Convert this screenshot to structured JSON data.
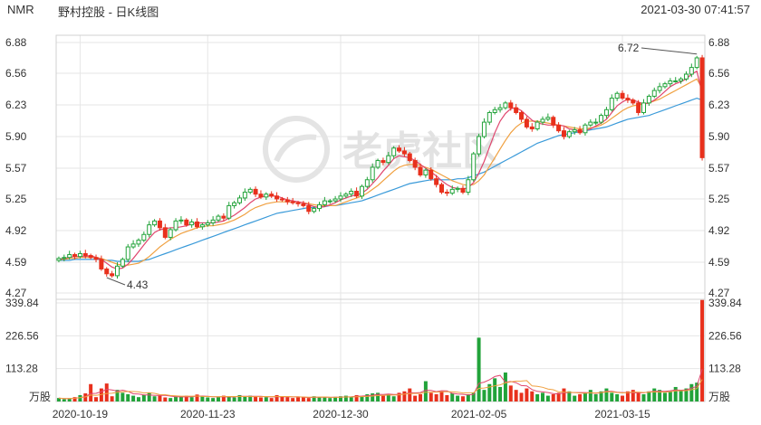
{
  "header": {
    "ticker": "NMR",
    "title": "野村控股 - 日K线图",
    "timestamp": "2021-03-30 07:41:57"
  },
  "watermark": "老虎社区",
  "colors": {
    "up": "#22a33a",
    "down": "#e8301c",
    "ma_fast": "#e0466e",
    "ma_mid": "#f0a040",
    "ma_slow": "#3a9ad9",
    "grid": "#e6e6e6",
    "axis_text": "#333333"
  },
  "chart_data": {
    "type": "candlestick",
    "price_axis": {
      "ylim": [
        4.27,
        6.88
      ],
      "ticks": [
        "6.88",
        "6.56",
        "6.23",
        "5.90",
        "5.57",
        "5.25",
        "4.92",
        "4.59",
        "4.27"
      ]
    },
    "volume_axis": {
      "ylim": [
        0,
        339.84
      ],
      "ticks": [
        "339.84",
        "226.56",
        "113.28"
      ],
      "unit": "万股"
    },
    "x_ticks": [
      {
        "label": "2020-10-19",
        "index": 4
      },
      {
        "label": "2020-11-23",
        "index": 28
      },
      {
        "label": "2020-12-30",
        "index": 53
      },
      {
        "label": "2021-02-05",
        "index": 79
      },
      {
        "label": "2021-03-15",
        "index": 106
      }
    ],
    "annotations": {
      "high": {
        "label": "6.72",
        "index": 120,
        "value": 6.72
      },
      "low": {
        "label": "4.43",
        "index": 9,
        "value": 4.43
      }
    },
    "close": [
      4.63,
      4.64,
      4.67,
      4.65,
      4.68,
      4.66,
      4.64,
      4.62,
      4.52,
      4.47,
      4.45,
      4.55,
      4.62,
      4.75,
      4.78,
      4.82,
      4.88,
      4.98,
      5.02,
      4.95,
      4.85,
      4.93,
      5.02,
      5.03,
      4.98,
      5.01,
      4.96,
      4.98,
      5.0,
      5.03,
      5.07,
      5.05,
      5.18,
      5.21,
      5.26,
      5.32,
      5.35,
      5.3,
      5.27,
      5.3,
      5.28,
      5.25,
      5.24,
      5.22,
      5.21,
      5.2,
      5.18,
      5.12,
      5.15,
      5.19,
      5.23,
      5.23,
      5.25,
      5.28,
      5.3,
      5.33,
      5.28,
      5.38,
      5.45,
      5.58,
      5.65,
      5.63,
      5.7,
      5.78,
      5.75,
      5.72,
      5.65,
      5.58,
      5.5,
      5.55,
      5.46,
      5.4,
      5.32,
      5.31,
      5.35,
      5.36,
      5.32,
      5.45,
      5.72,
      5.9,
      6.05,
      6.15,
      6.18,
      6.2,
      6.25,
      6.2,
      6.15,
      6.08,
      6.0,
      5.98,
      6.05,
      6.08,
      6.1,
      6.02,
      5.96,
      5.9,
      5.95,
      5.97,
      5.94,
      6.02,
      6.05,
      6.05,
      6.12,
      6.18,
      6.3,
      6.35,
      6.3,
      6.28,
      6.25,
      6.15,
      6.25,
      6.32,
      6.38,
      6.42,
      6.45,
      6.48,
      6.48,
      6.5,
      6.55,
      6.62,
      6.72,
      5.68
    ],
    "ma_fast": [
      4.62,
      4.63,
      4.64,
      4.65,
      4.65,
      4.65,
      4.66,
      4.64,
      4.62,
      4.58,
      4.54,
      4.52,
      4.53,
      4.57,
      4.63,
      4.7,
      4.77,
      4.84,
      4.9,
      4.93,
      4.94,
      4.95,
      4.95,
      4.96,
      4.97,
      4.99,
      5.0,
      5.0,
      5.0,
      5.0,
      5.01,
      5.02,
      5.05,
      5.08,
      5.12,
      5.16,
      5.21,
      5.25,
      5.27,
      5.28,
      5.28,
      5.28,
      5.26,
      5.24,
      5.23,
      5.22,
      5.21,
      5.19,
      5.17,
      5.16,
      5.17,
      5.19,
      5.21,
      5.24,
      5.26,
      5.28,
      5.29,
      5.31,
      5.35,
      5.41,
      5.47,
      5.54,
      5.6,
      5.67,
      5.7,
      5.69,
      5.68,
      5.65,
      5.61,
      5.57,
      5.53,
      5.49,
      5.44,
      5.4,
      5.37,
      5.36,
      5.35,
      5.37,
      5.42,
      5.52,
      5.64,
      5.79,
      5.94,
      6.06,
      6.14,
      6.19,
      6.2,
      6.17,
      6.12,
      6.07,
      6.04,
      6.03,
      6.02,
      6.02,
      6.02,
      6.01,
      5.98,
      5.97,
      5.95,
      5.96,
      5.98,
      6.01,
      6.04,
      6.08,
      6.15,
      6.22,
      6.26,
      6.29,
      6.28,
      6.26,
      6.24,
      6.25,
      6.28,
      6.32,
      6.37,
      6.42,
      6.45,
      6.47,
      6.5,
      6.55,
      6.58,
      6.35
    ],
    "ma_mid": [
      4.62,
      4.62,
      4.63,
      4.63,
      4.64,
      4.64,
      4.64,
      4.64,
      4.63,
      4.61,
      4.59,
      4.57,
      4.56,
      4.56,
      4.57,
      4.58,
      4.61,
      4.65,
      4.7,
      4.75,
      4.79,
      4.83,
      4.86,
      4.89,
      4.91,
      4.93,
      4.95,
      4.96,
      4.97,
      4.97,
      4.98,
      4.99,
      5.01,
      5.03,
      5.06,
      5.09,
      5.13,
      5.16,
      5.18,
      5.2,
      5.21,
      5.22,
      5.22,
      5.22,
      5.22,
      5.22,
      5.21,
      5.2,
      5.19,
      5.18,
      5.18,
      5.18,
      5.18,
      5.2,
      5.22,
      5.24,
      5.26,
      5.28,
      5.31,
      5.35,
      5.39,
      5.44,
      5.49,
      5.54,
      5.58,
      5.6,
      5.61,
      5.61,
      5.6,
      5.58,
      5.56,
      5.53,
      5.5,
      5.47,
      5.44,
      5.42,
      5.4,
      5.39,
      5.4,
      5.44,
      5.5,
      5.59,
      5.68,
      5.77,
      5.86,
      5.94,
      6.0,
      6.04,
      6.06,
      6.06,
      6.06,
      6.05,
      6.04,
      6.03,
      6.02,
      6.01,
      6.0,
      5.99,
      5.98,
      5.98,
      5.99,
      6.0,
      6.02,
      6.05,
      6.09,
      6.13,
      6.17,
      6.2,
      6.22,
      6.23,
      6.24,
      6.25,
      6.27,
      6.29,
      6.32,
      6.35,
      6.38,
      6.41,
      6.44,
      6.47,
      6.5,
      6.4
    ],
    "ma_slow": [
      4.61,
      4.61,
      4.61,
      4.62,
      4.62,
      4.62,
      4.62,
      4.62,
      4.62,
      4.61,
      4.61,
      4.6,
      4.6,
      4.6,
      4.6,
      4.6,
      4.61,
      4.62,
      4.64,
      4.66,
      4.68,
      4.7,
      4.72,
      4.74,
      4.76,
      4.78,
      4.8,
      4.82,
      4.84,
      4.86,
      4.88,
      4.9,
      4.92,
      4.94,
      4.96,
      4.98,
      5.0,
      5.02,
      5.04,
      5.06,
      5.08,
      5.1,
      5.11,
      5.12,
      5.13,
      5.14,
      5.15,
      5.16,
      5.16,
      5.17,
      5.17,
      5.18,
      5.18,
      5.19,
      5.2,
      5.21,
      5.22,
      5.23,
      5.25,
      5.27,
      5.29,
      5.31,
      5.33,
      5.35,
      5.37,
      5.39,
      5.41,
      5.42,
      5.43,
      5.44,
      5.45,
      5.45,
      5.45,
      5.45,
      5.45,
      5.46,
      5.46,
      5.47,
      5.49,
      5.51,
      5.53,
      5.56,
      5.59,
      5.62,
      5.65,
      5.68,
      5.71,
      5.74,
      5.77,
      5.8,
      5.83,
      5.85,
      5.87,
      5.89,
      5.91,
      5.92,
      5.93,
      5.94,
      5.95,
      5.96,
      5.97,
      5.98,
      5.99,
      6.0,
      6.02,
      6.04,
      6.06,
      6.08,
      6.09,
      6.1,
      6.11,
      6.12,
      6.14,
      6.16,
      6.18,
      6.2,
      6.22,
      6.24,
      6.26,
      6.28,
      6.3,
      6.28
    ],
    "volume": [
      12,
      8,
      10,
      15,
      22,
      28,
      60,
      15,
      45,
      62,
      18,
      40,
      30,
      25,
      20,
      15,
      22,
      30,
      18,
      20,
      14,
      12,
      18,
      16,
      20,
      15,
      24,
      18,
      14,
      12,
      15,
      20,
      18,
      14,
      22,
      16,
      20,
      18,
      14,
      15,
      12,
      22,
      18,
      15,
      12,
      14,
      16,
      12,
      18,
      15,
      14,
      12,
      16,
      18,
      20,
      15,
      22,
      18,
      25,
      28,
      30,
      20,
      25,
      18,
      30,
      35,
      45,
      20,
      25,
      70,
      30,
      25,
      35,
      22,
      28,
      20,
      18,
      25,
      30,
      220,
      40,
      60,
      80,
      50,
      100,
      55,
      40,
      30,
      45,
      35,
      25,
      30,
      20,
      25,
      30,
      45,
      35,
      20,
      25,
      30,
      40,
      25,
      35,
      45,
      30,
      25,
      20,
      35,
      40,
      30,
      25,
      35,
      45,
      40,
      30,
      35,
      50,
      40,
      45,
      60,
      65,
      350
    ]
  }
}
